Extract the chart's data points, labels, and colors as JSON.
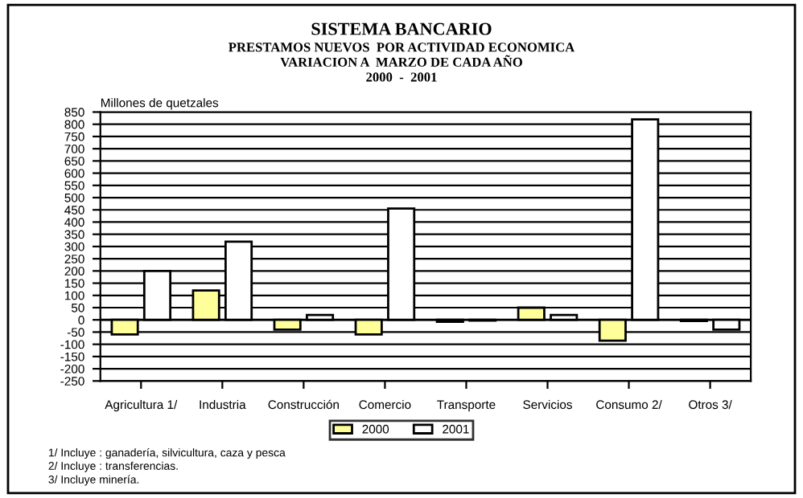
{
  "chart_data": {
    "type": "bar",
    "title": "SISTEMA BANCARIO",
    "subtitle": "PRESTAMOS NUEVOS  POR ACTIVIDAD ECONOMICA\nVARIACION A  MARZO DE CADA AÑO\n2000  -  2001",
    "ylabel": "Millones de quetzales",
    "categories": [
      "Agricultura 1/",
      "Industria",
      "Construcción",
      "Comercio",
      "Transporte",
      "Servicios",
      "Consumo 2/",
      "Otros 3/"
    ],
    "series": [
      {
        "name": "2000",
        "color": "#ffff99",
        "values": [
          -60,
          120,
          -40,
          -60,
          -8,
          50,
          -85,
          -5
        ]
      },
      {
        "name": "2001",
        "color": "#ffffff",
        "values": [
          200,
          320,
          20,
          455,
          -3,
          20,
          820,
          -40
        ]
      }
    ],
    "ylim": [
      -250,
      850
    ],
    "yticks": [
      -250,
      -200,
      -150,
      -100,
      -50,
      0,
      50,
      100,
      150,
      200,
      250,
      300,
      350,
      400,
      450,
      500,
      550,
      600,
      650,
      700,
      750,
      800,
      850
    ],
    "grid": "y",
    "legend": "bottom",
    "annotations": [
      "1/ Incluye : ganadería, silvicultura, caza y pesca",
      "2/ Incluye : transferencias.",
      "3/ Incluye minería."
    ]
  }
}
